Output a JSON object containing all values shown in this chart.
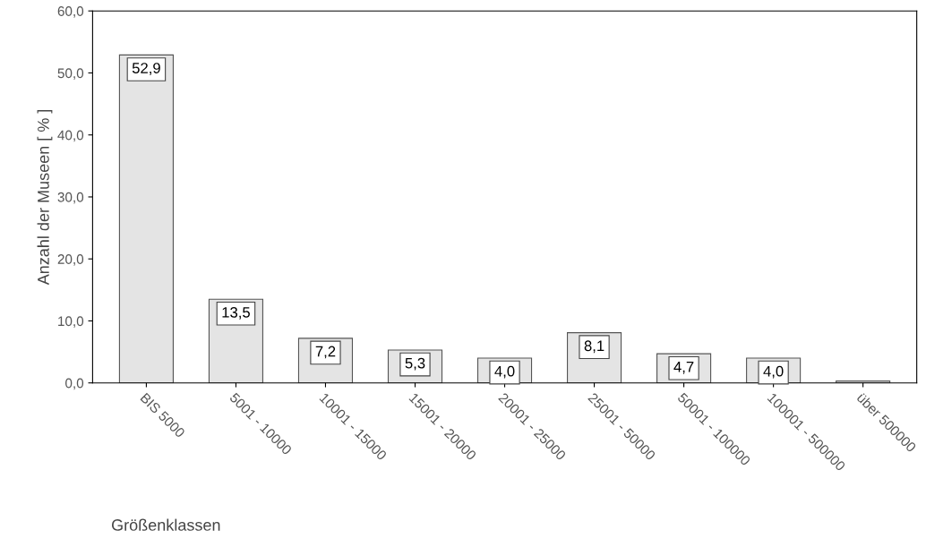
{
  "chart_data": {
    "type": "bar",
    "xlabel": "Größenklassen",
    "ylabel": "Anzahl der Museen [ % ]",
    "categories": [
      "BIS 5000",
      "5001 - 10000",
      "10001 - 15000",
      "15001 - 20000",
      "20001 - 25000",
      "25001 - 50000",
      "50001 - 100000",
      "100001 - 500000",
      "über 500000"
    ],
    "values": [
      52.9,
      13.5,
      7.2,
      5.3,
      4.0,
      8.1,
      4.7,
      4.0,
      0.3
    ],
    "value_labels": [
      "52,9",
      "13,5",
      "7,2",
      "5,3",
      "4,0",
      "8,1",
      "4,7",
      "4,0",
      null
    ],
    "color": "#e4e4e4",
    "ylim": [
      0,
      60
    ],
    "yticks": [
      {
        "value": 0,
        "label": "0,0"
      },
      {
        "value": 10,
        "label": "10,0"
      },
      {
        "value": 20,
        "label": "20,0"
      },
      {
        "value": 30,
        "label": "30,0"
      },
      {
        "value": 40,
        "label": "40,0"
      },
      {
        "value": 50,
        "label": "50,0"
      },
      {
        "value": 60,
        "label": "60,0"
      }
    ],
    "grid": false,
    "legend": false
  }
}
